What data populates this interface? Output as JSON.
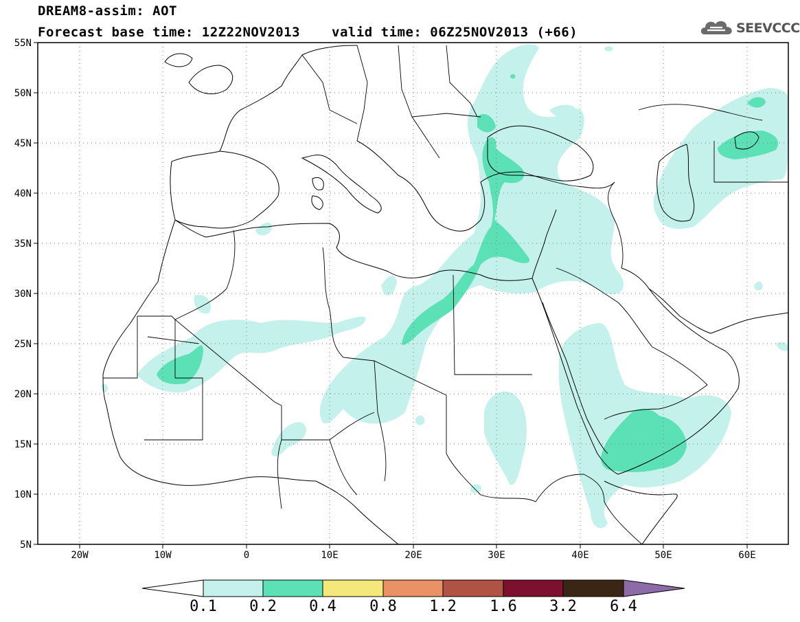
{
  "header": {
    "title": "DREAM8-assim: AOT",
    "base_time": "Forecast base time: 12Z22NOV2013",
    "valid_time": "valid time: 06Z25NOV2013 (+66)"
  },
  "logo": {
    "text": "SEEVCCC",
    "icon": "cloud-icon"
  },
  "map": {
    "lon_range": [
      -25,
      65
    ],
    "lat_range": [
      5,
      55
    ],
    "lon_ticks": [
      "20W",
      "10W",
      "0",
      "10E",
      "20E",
      "30E",
      "40E",
      "50E",
      "60E"
    ],
    "lat_ticks": [
      "55N",
      "50N",
      "45N",
      "40N",
      "35N",
      "30N",
      "25N",
      "20N",
      "15N",
      "10N",
      "5N"
    ],
    "grid": "dotted",
    "field_colors": {
      "0.1-0.2": "#c4f1eb",
      "0.2-0.4": "#5ce0b6"
    }
  },
  "colorbar": {
    "levels": [
      "0.1",
      "0.2",
      "0.4",
      "0.8",
      "1.2",
      "1.6",
      "3.2",
      "6.4"
    ],
    "colors": [
      "#c4f1eb",
      "#5ce0b6",
      "#f5e87a",
      "#ea9265",
      "#b05244",
      "#7d0f2f",
      "#3b2616"
    ],
    "extend_low_color": "#ffffff",
    "extend_high_color": "#8d6aa8"
  }
}
